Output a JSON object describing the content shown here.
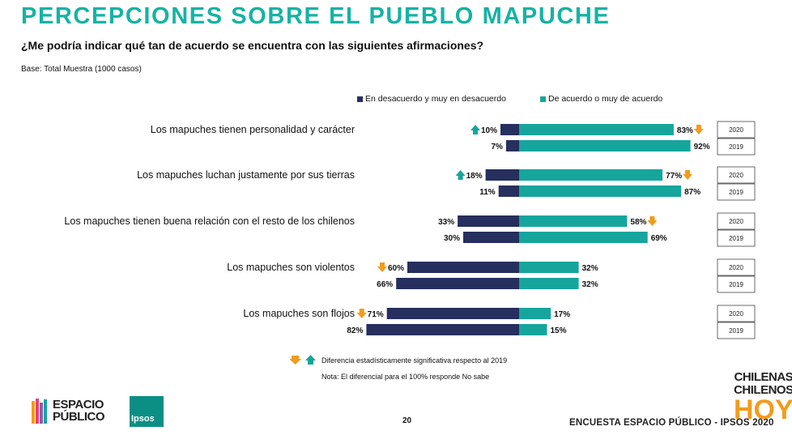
{
  "header": {
    "title": "PERCEPCIONES SOBRE EL PUEBLO MAPUCHE",
    "question": "¿Me podría indicar qué tan de acuerdo se encuentra con las siguientes afirmaciones?",
    "base": "Base: Total Muestra (1000 casos)"
  },
  "colors": {
    "title": "#16b3a3",
    "disagree": "#262f5d",
    "agree": "#16a59c",
    "arrow_down": "#f29b1d",
    "arrow_up": "#16a59c"
  },
  "chart_data": {
    "type": "bar",
    "orientation": "horizontal-diverging",
    "unit": "%",
    "legend": [
      {
        "name": "En desacuerdo y muy en desacuerdo",
        "color": "#262f5d"
      },
      {
        "name": "De acuerdo o muy de acuerdo",
        "color": "#16a59c"
      }
    ],
    "categories": [
      "Los mapuches tienen personalidad y carácter",
      "Los mapuches luchan justamente por sus tierras",
      "Los mapuches tienen buena relación con el resto de los chilenos",
      "Los mapuches son violentos",
      "Los mapuches son flojos"
    ],
    "years": [
      "2020",
      "2019"
    ],
    "series": [
      {
        "name": "En desacuerdo y muy en desacuerdo",
        "year": "2020",
        "values": [
          10,
          18,
          33,
          60,
          71
        ],
        "significance": [
          "up",
          "up",
          null,
          "down",
          "down"
        ]
      },
      {
        "name": "De acuerdo o muy de acuerdo",
        "year": "2020",
        "values": [
          83,
          77,
          58,
          32,
          17
        ],
        "significance": [
          "down",
          "down",
          "down",
          null,
          null
        ]
      },
      {
        "name": "En desacuerdo y muy en desacuerdo",
        "year": "2019",
        "values": [
          7,
          11,
          30,
          66,
          82
        ]
      },
      {
        "name": "De acuerdo o muy de acuerdo",
        "year": "2019",
        "values": [
          92,
          87,
          69,
          32,
          15
        ]
      }
    ]
  },
  "footnotes": {
    "significance": "Diferencia estadísticamente significativa respecto al 2019",
    "note": "Nota: El diferencial para el 100% responde No sabe"
  },
  "footer": {
    "logo_ep_line1": "ESPACIO",
    "logo_ep_line2": "PÚBLICO",
    "logo_ipsos": "Ipsos",
    "page_number": "20",
    "survey": "ENCUESTA ESPACIO PÚBLICO - IPSOS 2020",
    "brand_line1": "CHILENAS",
    "brand_line2": "CHILENOS",
    "brand_line3": "HOY"
  }
}
